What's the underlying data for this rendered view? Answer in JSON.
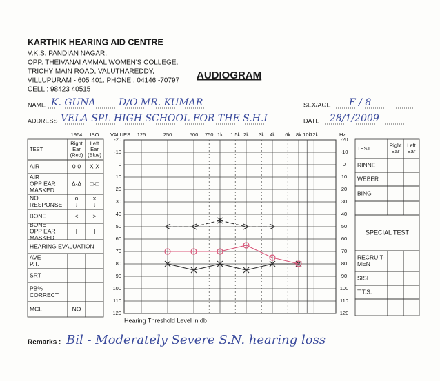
{
  "header": {
    "clinic": "KARTHIK HEARING AID CENTRE",
    "address_lines": [
      "V.K.S. PANDIAN NAGAR,",
      "OPP. THEIVANAI AMMAL WOMEN'S COLLEGE,",
      "TRICHY MAIN ROAD, VALUTHAREDDY,",
      "VILLUPURAM - 605 401. PHONE : 04146 -70797",
      "CELL : 98423 40515"
    ],
    "title": "AUDIOGRAM"
  },
  "patient": {
    "name_label": "NAME",
    "name": "K. GUNA",
    "relation": "D/O MR. KUMAR",
    "sex_age_label": "SEX/AGE",
    "sex_age": "F / 8",
    "address_label": "ADDRESS",
    "address": "VELA SPL HIGH SCHOOL FOR THE S.H.I",
    "date_label": "DATE",
    "date": "28/1/2009"
  },
  "left_table": {
    "standards": [
      "1964",
      "ISO"
    ],
    "header": {
      "test": [
        "TEST"
      ],
      "right": [
        "Right",
        "Ear",
        "(Red)"
      ],
      "left": [
        "Left",
        "Ear",
        "(Blue)"
      ]
    },
    "rows": [
      {
        "test": [
          "AIR"
        ],
        "right": [
          "0-0"
        ],
        "left": [
          "X-X"
        ]
      },
      {
        "test": [
          "AIR",
          "OPP EAR",
          "MASKED"
        ],
        "right": [
          "Δ-Δ"
        ],
        "left": [
          "□-□"
        ]
      },
      {
        "test": [
          "NO",
          "RESPONSE"
        ],
        "right": [
          "o",
          "↓"
        ],
        "left": [
          "x",
          "↓"
        ]
      },
      {
        "test": [
          "BONE"
        ],
        "right": [
          "<"
        ],
        "left": [
          ">"
        ]
      },
      {
        "test": [
          "BONE",
          "OPP EAR",
          "MASKED"
        ],
        "right": [
          "["
        ],
        "left": [
          "]"
        ]
      }
    ],
    "evaluation_title": "HEARING EVALUATION",
    "evaluation_rows": [
      {
        "test": [
          "AVE",
          "P.T."
        ]
      },
      {
        "test": [
          "SRT"
        ]
      },
      {
        "test": [
          "PB%",
          "CORRECT"
        ]
      },
      {
        "test": [
          "MCL"
        ],
        "right": [
          "NO"
        ]
      }
    ]
  },
  "audiogram": {
    "values_label": "VALUES",
    "hz_label": "Hz.",
    "x_label": "Hearing Threshold Level in db",
    "yticks": [
      -20,
      -10,
      0,
      10,
      20,
      30,
      40,
      50,
      60,
      70,
      80,
      90,
      100,
      110,
      120
    ],
    "frequencies": [
      125,
      250,
      500,
      750,
      {
        "value": 1000,
        "label": "1k"
      },
      {
        "value": 1500,
        "label": "1.5k"
      },
      {
        "value": 2000,
        "label": "2k"
      },
      {
        "value": 3000,
        "label": "3k"
      },
      {
        "value": 4000,
        "label": "4k"
      },
      {
        "value": 6000,
        "label": "6k"
      },
      {
        "value": 8000,
        "label": "8k"
      },
      {
        "value": 10000,
        "label": "10k"
      },
      {
        "value": 12000,
        "label": "12k"
      }
    ],
    "right_air": {
      "color": "#d9577a",
      "frequencies": [
        250,
        500,
        1000,
        2000,
        4000,
        8000
      ],
      "values": [
        70,
        70,
        70,
        65,
        75,
        80
      ]
    },
    "left_air": {
      "color": "#333333",
      "frequencies": [
        250,
        500,
        1000,
        2000,
        4000,
        8000
      ],
      "values": [
        80,
        85,
        80,
        85,
        80,
        80
      ]
    },
    "right_bone": {
      "color": "#333333",
      "frequencies": [
        250,
        500,
        1000
      ],
      "values": [
        50,
        50,
        45
      ]
    },
    "left_bone": {
      "color": "#333333",
      "frequencies": [
        1000,
        2000,
        4000
      ],
      "values": [
        45,
        50,
        50
      ]
    }
  },
  "right_table": {
    "header": {
      "test": [
        "TEST"
      ],
      "right": [
        "Right",
        "Ear"
      ],
      "left": [
        "Left",
        "Ear"
      ]
    },
    "rows": [
      {
        "test": [
          "RINNE"
        ]
      },
      {
        "test": [
          "WEBER"
        ]
      },
      {
        "test": [
          "BING"
        ]
      }
    ],
    "special_title": "SPECIAL TEST",
    "special_rows": [
      {
        "test": [
          "RECRUIT-",
          "MENT"
        ]
      },
      {
        "test": [
          "SISI"
        ]
      },
      {
        "test": [
          "T.T.S."
        ]
      }
    ]
  },
  "remarks": {
    "label": "Remarks :",
    "text": "Bil - Moderately Severe S.N. hearing loss"
  }
}
